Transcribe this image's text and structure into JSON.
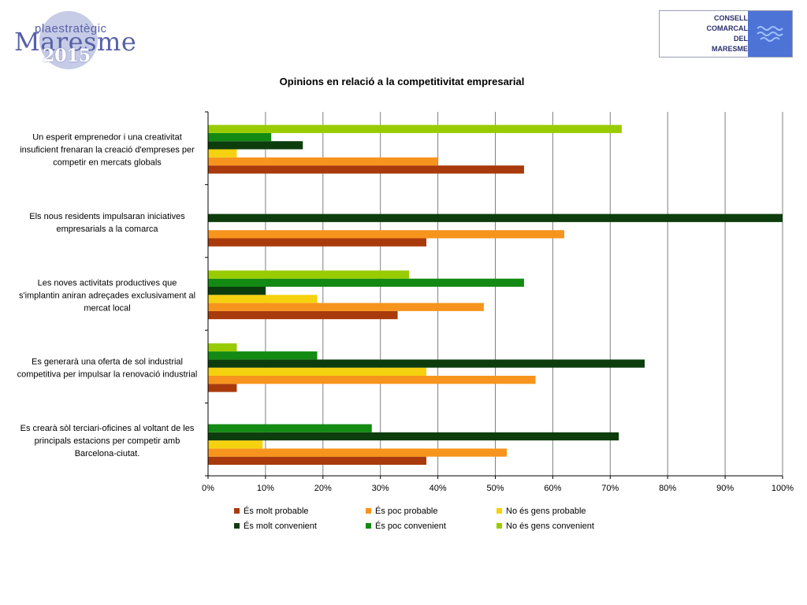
{
  "logo_left": {
    "plan": "plaestratègic",
    "brand": "Maresme",
    "year": "2015"
  },
  "logo_right": {
    "lines": [
      "CONSELL",
      "COMARCAL",
      "DEL",
      "MARESME"
    ]
  },
  "colors": {
    "molt_probable": "#a93a0c",
    "poc_probable": "#f7941d",
    "no_gens_probable": "#f5d20f",
    "molt_convenient": "#0d3d0d",
    "poc_convenient": "#138a13",
    "no_gens_convenient": "#99cc00",
    "grid": "#808080"
  },
  "chart_data": {
    "type": "bar",
    "orientation": "horizontal",
    "title": "Opinions en relació a la competitivitat empresarial",
    "xlabel": "",
    "ylabel": "",
    "xlim": [
      0,
      100
    ],
    "x_ticks": [
      "0%",
      "10%",
      "20%",
      "30%",
      "40%",
      "50%",
      "60%",
      "70%",
      "80%",
      "90%",
      "100%"
    ],
    "grid": true,
    "legend_position": "bottom",
    "categories": [
      [
        "Es crearà sòl terciari-oficines al voltant de les",
        "principals estacions per competir amb",
        "Barcelona-ciutat."
      ],
      [
        "Es generarà una oferta de sol industrial",
        "competitiva per impulsar la renovació industrial"
      ],
      [
        "Les noves activitats productives que",
        "s'implantin aniran adreçades exclusivament al",
        "mercat local"
      ],
      [
        "Els nous residents impulsaran iniciatives",
        "empresarials a la comarca"
      ],
      [
        "Un esperit emprenedor i una creativitat",
        "insuficient frenaran la creació d'empreses per",
        "competir en mercats globals"
      ]
    ],
    "series": [
      {
        "name": "És molt probable",
        "color_key": "molt_probable",
        "values": [
          38,
          5,
          33,
          38,
          55
        ]
      },
      {
        "name": "És poc probable",
        "color_key": "poc_probable",
        "values": [
          52,
          57,
          48,
          62,
          40
        ]
      },
      {
        "name": "No és gens probable",
        "color_key": "no_gens_probable",
        "values": [
          9.5,
          38,
          19,
          0,
          5
        ]
      },
      {
        "name": "És molt convenient",
        "color_key": "molt_convenient",
        "values": [
          71.5,
          76,
          10,
          100,
          16.5
        ]
      },
      {
        "name": "És poc convenient",
        "color_key": "poc_convenient",
        "values": [
          28.5,
          19,
          55,
          0,
          11
        ]
      },
      {
        "name": "No és gens convenient",
        "color_key": "no_gens_convenient",
        "values": [
          0,
          5,
          35,
          0,
          72
        ]
      }
    ]
  }
}
